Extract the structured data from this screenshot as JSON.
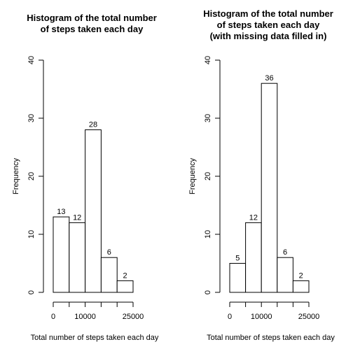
{
  "chart_data": [
    {
      "type": "bar",
      "title": [
        "Histogram of the total number",
        "of steps taken each day"
      ],
      "xlabel": "Total number of steps taken each day",
      "ylabel": "Frequency",
      "bin_edges": [
        0,
        5000,
        10000,
        15000,
        20000,
        25000
      ],
      "values": [
        13,
        12,
        28,
        6,
        2
      ],
      "xticks": [
        0,
        10000,
        25000
      ],
      "xtick_labels": [
        "0",
        "10000",
        "25000"
      ],
      "yticks": [
        0,
        10,
        20,
        30,
        40
      ],
      "yticks_labels": [
        "0",
        "10",
        "20",
        "30",
        "40"
      ],
      "ylim": [
        0,
        40
      ],
      "xlim": [
        0,
        25000
      ],
      "bar_fill": "#ffffff",
      "bar_stroke": "#000000"
    },
    {
      "type": "bar",
      "title": [
        "Histogram of the total number",
        "of steps taken each day",
        "(with missing data filled in)"
      ],
      "xlabel": "Total number of steps taken each day",
      "ylabel": "Frequency",
      "bin_edges": [
        0,
        5000,
        10000,
        15000,
        20000,
        25000
      ],
      "values": [
        5,
        12,
        36,
        6,
        2
      ],
      "xticks": [
        0,
        10000,
        25000
      ],
      "xtick_labels": [
        "0",
        "10000",
        "25000"
      ],
      "yticks": [
        0,
        10,
        20,
        30,
        40
      ],
      "yticks_labels": [
        "0",
        "10",
        "20",
        "30",
        "40"
      ],
      "ylim": [
        0,
        40
      ],
      "xlim": [
        0,
        25000
      ],
      "bar_fill": "#ffffff",
      "bar_stroke": "#000000"
    }
  ]
}
